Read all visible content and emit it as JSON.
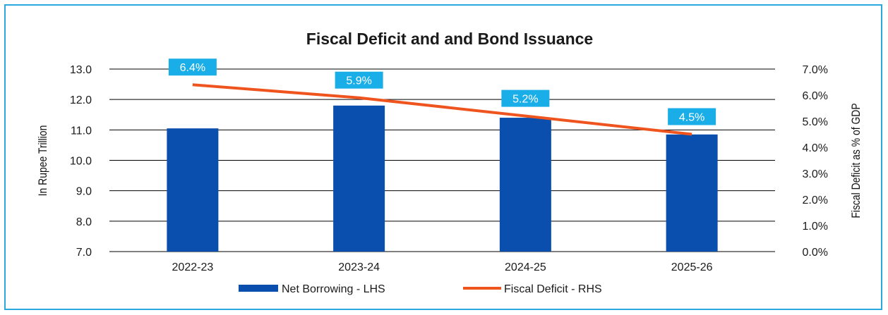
{
  "chart_data": {
    "type": "bar+line",
    "title": "Fiscal Deficit and and Bond Issuance",
    "categories": [
      "2022-23",
      "2023-24",
      "2024-25",
      "2025-26"
    ],
    "series": [
      {
        "name": "Net Borrowing - LHS",
        "type": "bar",
        "axis": "left",
        "color": "#0b4fae",
        "values": [
          11.05,
          11.8,
          11.4,
          10.85
        ]
      },
      {
        "name": "Fiscal Deficit - RHS",
        "type": "line",
        "axis": "right",
        "color": "#f0541e",
        "values": [
          6.4,
          5.9,
          5.2,
          4.5
        ]
      }
    ],
    "data_labels": [
      "6.4%",
      "5.9%",
      "5.2%",
      "4.5%"
    ],
    "label_color": "#1aaee8",
    "ylabel": "In Rupee Trillion",
    "y2label": "Fiscal Deficit as % of GDP",
    "ylim": [
      7.0,
      13.0
    ],
    "y2lim": [
      0.0,
      7.0
    ],
    "yticks": [
      "7.0",
      "8.0",
      "9.0",
      "10.0",
      "11.0",
      "12.0",
      "13.0"
    ],
    "y2ticks": [
      "0.0%",
      "1.0%",
      "2.0%",
      "3.0%",
      "4.0%",
      "5.0%",
      "6.0%",
      "7.0%"
    ],
    "grid": true,
    "legend_position": "bottom"
  }
}
